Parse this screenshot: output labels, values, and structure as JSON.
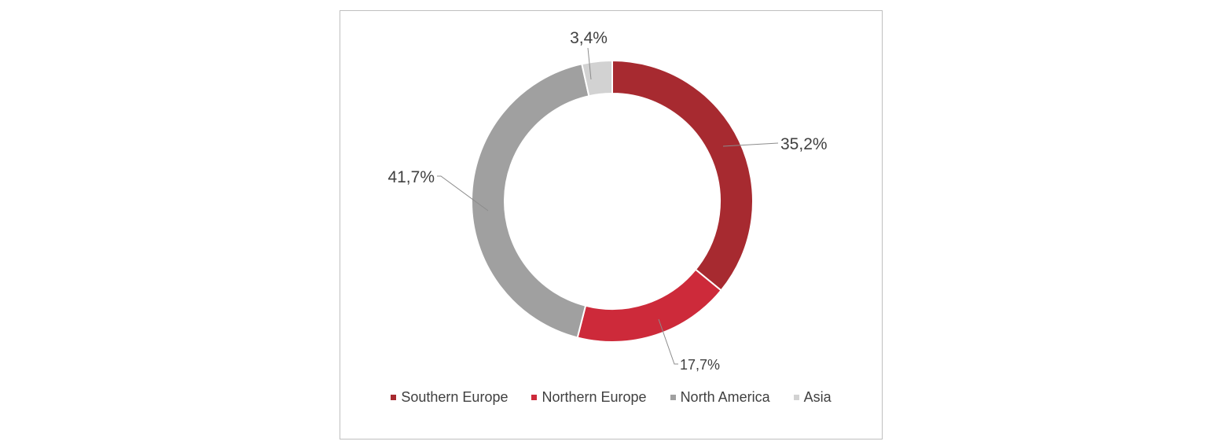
{
  "chart_data": {
    "type": "pie",
    "variant": "donut",
    "categories": [
      "Southern Europe",
      "Northern Europe",
      "North America",
      "Asia"
    ],
    "values": [
      35.2,
      17.7,
      41.7,
      3.4
    ],
    "labels": [
      "35,2%",
      "17,7%",
      "41,7%",
      "3,4%"
    ],
    "colors": [
      "#a72a30",
      "#cd2a3a",
      "#a0a0a0",
      "#d2d2d2"
    ],
    "legend_position": "bottom"
  }
}
